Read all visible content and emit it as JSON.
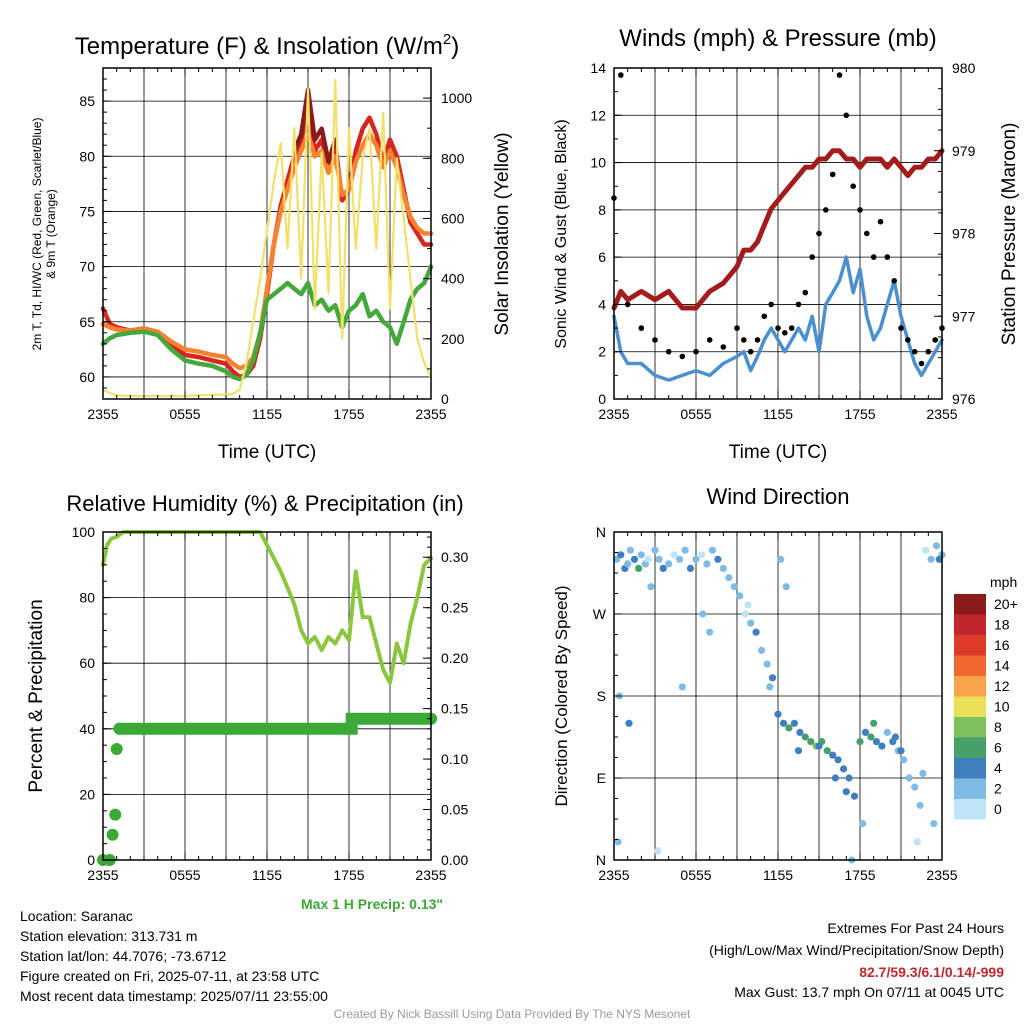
{
  "chart_data": [
    {
      "type": "line",
      "title": "Temperature (F) & Insolation (W/m",
      "title_superscript": "2",
      "title_end": ")",
      "xlabel": "Time (UTC)",
      "ylabel_lines": [
        "2m T, Td, HI/WC (Red, Green, Scarlet/Blue)",
        "& 9m T (Orange)"
      ],
      "ylabel_right": "Solar Insolation (Yellow)",
      "x_ticks": [
        "2355",
        "0555",
        "1155",
        "1755",
        "2355"
      ],
      "ylim": [
        58,
        88
      ],
      "y_ticks": [
        60,
        65,
        70,
        75,
        80,
        85
      ],
      "ylim_right": [
        0,
        1100
      ],
      "y_ticks_right": [
        0,
        200,
        400,
        600,
        800,
        1000
      ],
      "grid": true,
      "x_hours": [
        0,
        0.5,
        1,
        2,
        3,
        4,
        5,
        6,
        7,
        8,
        9,
        9.5,
        10,
        10.5,
        11,
        11.5,
        12,
        12.5,
        13,
        13.5,
        14,
        14.5,
        15,
        15.5,
        16,
        16.5,
        17,
        17.5,
        18,
        18.5,
        19,
        19.5,
        20,
        20.5,
        21,
        21.5,
        22,
        22.5,
        23,
        23.5,
        24
      ],
      "series": [
        {
          "name": "2m T",
          "color": "#d7261e",
          "values": [
            66.2,
            64.8,
            64.5,
            64.2,
            64.4,
            64.0,
            62.8,
            62.0,
            61.8,
            61.5,
            61.2,
            60.5,
            60.0,
            60.2,
            61.0,
            63.5,
            67.5,
            72.0,
            75.5,
            77.8,
            80.0,
            81.5,
            84.0,
            80.5,
            81.5,
            79.0,
            81.0,
            76.0,
            77.0,
            80.5,
            82.5,
            83.5,
            82.0,
            79.5,
            81.5,
            80.0,
            77.0,
            74.0,
            73.0,
            72.0,
            72.0
          ]
        },
        {
          "name": "9m T",
          "color": "#f58231",
          "values": [
            64.8,
            64.5,
            64.3,
            64.2,
            64.4,
            64.1,
            63.2,
            62.5,
            62.3,
            62.0,
            61.8,
            61.2,
            60.8,
            61.0,
            61.8,
            64.0,
            68.0,
            72.0,
            75.0,
            77.0,
            79.0,
            80.5,
            82.0,
            80.0,
            80.5,
            78.5,
            80.0,
            76.5,
            77.0,
            79.5,
            81.0,
            82.0,
            81.0,
            79.0,
            80.5,
            79.0,
            76.5,
            74.5,
            73.5,
            73.0,
            73.0
          ]
        },
        {
          "name": "Td",
          "color": "#45a83b",
          "values": [
            63.0,
            63.5,
            63.8,
            64.0,
            64.1,
            63.8,
            62.5,
            61.5,
            61.2,
            61.0,
            60.5,
            60.0,
            59.8,
            60.2,
            61.5,
            64.0,
            67.0,
            67.5,
            68.0,
            68.5,
            68.0,
            67.5,
            68.5,
            66.5,
            67.0,
            66.0,
            66.5,
            64.5,
            66.0,
            66.5,
            67.5,
            65.5,
            66.0,
            65.0,
            64.5,
            63.0,
            65.0,
            67.0,
            68.0,
            68.5,
            70.0
          ]
        },
        {
          "name": "HI/WC",
          "color": "#8b1a1a",
          "values": [
            null,
            null,
            null,
            null,
            null,
            null,
            null,
            null,
            null,
            null,
            null,
            null,
            null,
            null,
            null,
            null,
            null,
            null,
            null,
            null,
            80.5,
            82.0,
            86.0,
            81.5,
            82.5,
            79.5,
            81.5,
            null,
            null,
            null,
            null,
            null,
            null,
            null,
            null,
            null,
            null,
            null,
            null,
            null,
            null
          ]
        },
        {
          "name": "Solar Insolation",
          "color": "#f3e06a",
          "axis": "right",
          "values": [
            30,
            20,
            12,
            10,
            10,
            10,
            10,
            10,
            12,
            14,
            15,
            18,
            30,
            120,
            260,
            400,
            560,
            720,
            850,
            500,
            900,
            400,
            1030,
            300,
            820,
            350,
            1060,
            200,
            900,
            500,
            800,
            900,
            500,
            950,
            300,
            800,
            600,
            400,
            200,
            120,
            70
          ]
        }
      ]
    },
    {
      "type": "line",
      "title": "Winds (mph) & Pressure (mb)",
      "xlabel": "Time (UTC)",
      "ylabel": "Sonic Wind & Gust (Blue, Black)",
      "ylabel_right": "Station Pressure (Maroon)",
      "x_ticks": [
        "2355",
        "0555",
        "1155",
        "1755",
        "2355"
      ],
      "ylim": [
        0,
        14
      ],
      "y_ticks": [
        0,
        2,
        4,
        6,
        8,
        10,
        12,
        14
      ],
      "ylim_right": [
        976,
        980
      ],
      "y_ticks_right": [
        976,
        977,
        978,
        979,
        980
      ],
      "grid": true,
      "x_hours": [
        0,
        0.5,
        1,
        2,
        3,
        4,
        5,
        6,
        7,
        8,
        9,
        9.5,
        10,
        10.5,
        11,
        11.5,
        12,
        12.5,
        13,
        13.5,
        14,
        14.5,
        15,
        15.5,
        16,
        16.5,
        17,
        17.5,
        18,
        18.5,
        19,
        19.5,
        20,
        20.5,
        21,
        21.5,
        22,
        22.5,
        23,
        23.5,
        24
      ],
      "series": [
        {
          "name": "Sonic Wind",
          "color": "#4a8fd0",
          "values": [
            3.5,
            2.0,
            1.5,
            1.5,
            1.0,
            0.8,
            1.0,
            1.2,
            1.0,
            1.5,
            1.8,
            2.0,
            1.2,
            1.8,
            2.5,
            3.0,
            2.5,
            2.0,
            2.5,
            3.0,
            2.5,
            3.5,
            2.0,
            4.0,
            4.5,
            5.0,
            6.0,
            4.5,
            5.5,
            3.5,
            2.5,
            3.0,
            4.0,
            5.0,
            3.5,
            2.5,
            1.5,
            1.0,
            1.5,
            2.0,
            2.5
          ]
        },
        {
          "name": "Gust",
          "color": "#000000",
          "values": [
            8.5,
            13.7,
            4.0,
            3.0,
            2.5,
            2.0,
            1.8,
            2.0,
            2.5,
            2.2,
            3.0,
            2.5,
            2.0,
            2.5,
            3.5,
            4.0,
            3.0,
            2.8,
            3.0,
            4.0,
            4.5,
            6.0,
            7.0,
            8.0,
            9.5,
            13.7,
            12.0,
            9.0,
            8.0,
            7.0,
            6.0,
            7.5,
            6.0,
            5.0,
            3.0,
            2.5,
            2.0,
            1.5,
            2.0,
            2.5,
            3.0
          ]
        },
        {
          "name": "Station Pressure",
          "color": "#a31b1b",
          "axis": "right",
          "values": [
            977.1,
            977.3,
            977.2,
            977.3,
            977.2,
            977.3,
            977.1,
            977.1,
            977.3,
            977.4,
            977.6,
            977.8,
            977.8,
            977.9,
            978.1,
            978.3,
            978.4,
            978.5,
            978.6,
            978.7,
            978.8,
            978.8,
            978.9,
            978.9,
            979.0,
            979.0,
            978.9,
            978.9,
            978.8,
            978.9,
            978.9,
            978.9,
            978.8,
            978.9,
            978.8,
            978.7,
            978.8,
            978.8,
            978.9,
            978.9,
            979.0
          ]
        }
      ]
    },
    {
      "type": "line",
      "title": "Relative Humidity (%) & Precipitation (in)",
      "ylabel": "Percent & Precipitation",
      "x_ticks": [
        "2355",
        "0555",
        "1155",
        "1755",
        "2355"
      ],
      "ylim": [
        0,
        100
      ],
      "y_ticks": [
        0,
        20,
        40,
        60,
        80,
        100
      ],
      "ylim_right": [
        0,
        0.325
      ],
      "y_ticks_right": [
        "0.00",
        "0.05",
        "0.10",
        "0.15",
        "0.20",
        "0.25",
        "0.30"
      ],
      "grid": true,
      "series": [
        {
          "name": "Relative Humidity",
          "color": "#8cc63f",
          "x_hours": [
            0,
            0.3,
            0.6,
            1,
            1.5,
            2,
            3,
            6,
            9,
            11.5,
            12,
            13,
            14,
            14.5,
            15,
            15.5,
            16,
            16.5,
            17,
            17.5,
            18,
            18.5,
            19,
            19.5,
            20,
            20.5,
            21,
            21.5,
            22,
            22.5,
            23,
            23.5,
            24
          ],
          "values": [
            90,
            96,
            98,
            98.5,
            100,
            100,
            100,
            100,
            100,
            100,
            96,
            88,
            78,
            70,
            66,
            68,
            64,
            68,
            66,
            70,
            67,
            88,
            74,
            74,
            66,
            58,
            54,
            66,
            60,
            72,
            80,
            90,
            92
          ]
        },
        {
          "name": "Precipitation",
          "color": "#3aa935",
          "x_hours": [
            0,
            0.5,
            0.7,
            0.9,
            1.0,
            1.2,
            24
          ],
          "values": [
            0,
            0,
            0.025,
            0.045,
            0.11,
            0.13,
            0.14
          ]
        }
      ],
      "max_precip_label": "Max 1 H Precip: 0.13\""
    },
    {
      "type": "scatter",
      "title": "Wind Direction",
      "ylabel": "Direction (Colored By Speed)",
      "x_ticks": [
        "2355",
        "0555",
        "1155",
        "1755",
        "2355"
      ],
      "y_ticks": [
        "N",
        "E",
        "S",
        "W",
        "N"
      ],
      "ylim": [
        0,
        360
      ],
      "grid": true,
      "legend_title": "mph",
      "legend_labels": [
        "20+",
        "18",
        "16",
        "14",
        "12",
        "10",
        "8",
        "6",
        "4",
        "2",
        "0"
      ],
      "legend_colors": [
        "#8b1a1a",
        "#c0282d",
        "#dd3c2a",
        "#f0672c",
        "#f7a44a",
        "#e9e057",
        "#7cc15b",
        "#45a06a",
        "#3f7fbd",
        "#80bbe6",
        "#bfe4f7"
      ],
      "points_hours": [
        0.2,
        0.5,
        0.8,
        1.0,
        1.2,
        1.5,
        1.8,
        2.0,
        2.3,
        2.5,
        3.0,
        3.3,
        3.6,
        4.0,
        4.4,
        4.8,
        5.2,
        5.6,
        6.0,
        6.4,
        6.8,
        7.2,
        7.6,
        8.0,
        8.4,
        8.8,
        9.2,
        9.6,
        10.0,
        10.4,
        10.8,
        11.2,
        11.6,
        12.0,
        12.4,
        12.8,
        13.2,
        13.6,
        14.0,
        14.4,
        14.8,
        15.2,
        15.6,
        16.0,
        16.4,
        16.8,
        17.2,
        17.6,
        18.0,
        18.4,
        18.8,
        19.2,
        19.6,
        20.0,
        20.4,
        20.8,
        21.2,
        21.6,
        22.0,
        22.4,
        22.8,
        23.2,
        23.6,
        24.0,
        0.4,
        1.1,
        2.7,
        5.0,
        7.0,
        9.8,
        12.2,
        12.6,
        15.0,
        17.0,
        18.2,
        19.0,
        20.6,
        22.6,
        23.4,
        0.3,
        3.2,
        6.5,
        11.4,
        13.5,
        16.2,
        17.4,
        21.0,
        22.2,
        23.8
      ],
      "points_dir": [
        330,
        335,
        320,
        325,
        340,
        330,
        320,
        335,
        325,
        330,
        340,
        330,
        320,
        325,
        335,
        330,
        340,
        320,
        330,
        335,
        325,
        340,
        330,
        320,
        310,
        300,
        290,
        270,
        260,
        250,
        230,
        215,
        200,
        160,
        150,
        145,
        150,
        140,
        135,
        130,
        125,
        130,
        120,
        115,
        110,
        100,
        90,
        70,
        130,
        140,
        135,
        130,
        125,
        140,
        130,
        120,
        110,
        90,
        80,
        60,
        340,
        330,
        345,
        335,
        180,
        150,
        300,
        190,
        250,
        280,
        330,
        300,
        125,
        75,
        40,
        150,
        135,
        95,
        40,
        20,
        10,
        270,
        190,
        120,
        90,
        0,
        120,
        20,
        330
      ],
      "points_speed": [
        1,
        4,
        3,
        1,
        2,
        3,
        5,
        1,
        2,
        0,
        1,
        2,
        3,
        1,
        0,
        2,
        1,
        3,
        1,
        0,
        2,
        1,
        3,
        2,
        1,
        1,
        2,
        0,
        1,
        3,
        1,
        2,
        4,
        3,
        4,
        5,
        3,
        4,
        6,
        5,
        7,
        6,
        5,
        4,
        3,
        4,
        3,
        3,
        5,
        4,
        5,
        4,
        3,
        2,
        3,
        2,
        1,
        1,
        2,
        1,
        0,
        1,
        2,
        1,
        1,
        4,
        1,
        2,
        1,
        0,
        1,
        2,
        4,
        3,
        1,
        5,
        3,
        2,
        1,
        1,
        0,
        1,
        2,
        4,
        3,
        1,
        3,
        0,
        4
      ]
    }
  ],
  "info": {
    "location": "Location: Saranac",
    "elevation": "Station elevation: 313.731 m",
    "latlon": "Station lat/lon: 44.7076; -73.6712",
    "created": "Figure created on Fri, 2025-07-11, at 23:58 UTC",
    "recent": "Most recent data timestamp: 2025/07/11 23:55:00"
  },
  "extremes": {
    "title": "Extremes For Past 24 Hours",
    "subtitle": "(High/Low/Max Wind/Precipitation/Snow Depth)",
    "values": "82.7/59.3/6.1/0.14/-999",
    "max_gust": "Max Gust: 13.7 mph On 07/11 at 0045 UTC"
  },
  "credit": "Created By Nick Bassill Using Data Provided By The NYS Mesonet"
}
